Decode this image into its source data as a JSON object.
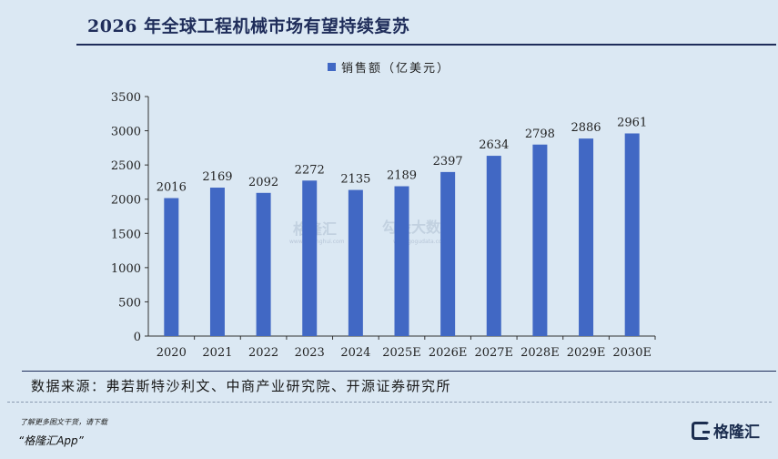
{
  "title": "2026 年全球工程机械市场有望持续复苏",
  "source": "数据来源：弗若斯特沙利文、中商产业研究院、开源证券研究所",
  "promo": {
    "line1": "了解更多图文干货，请下载",
    "line2": "“格隆汇App”"
  },
  "brand": {
    "name": "格隆汇"
  },
  "watermarks": {
    "left": "格隆汇",
    "left_url": "www.gelonghui.com",
    "right": "勾股大数据",
    "right_url": "www.gogudata.com"
  },
  "colors": {
    "bar": "#4168c4",
    "title": "#1f2d5a",
    "background": "#dbe8f3"
  },
  "chart_data": {
    "type": "bar",
    "categories": [
      "2020",
      "2021",
      "2022",
      "2023",
      "2024",
      "2025E",
      "2026E",
      "2027E",
      "2028E",
      "2029E",
      "2030E"
    ],
    "series": [
      {
        "name": "销售额（亿美元）",
        "values": [
          2016,
          2169,
          2092,
          2272,
          2135,
          2189,
          2397,
          2634,
          2798,
          2886,
          2961
        ]
      }
    ],
    "ylim": [
      0,
      3500
    ],
    "yticks": [
      0,
      500,
      1000,
      1500,
      2000,
      2500,
      3000,
      3500
    ],
    "xlabel": "",
    "ylabel": "",
    "legend_position": "top-center",
    "grid": false
  }
}
